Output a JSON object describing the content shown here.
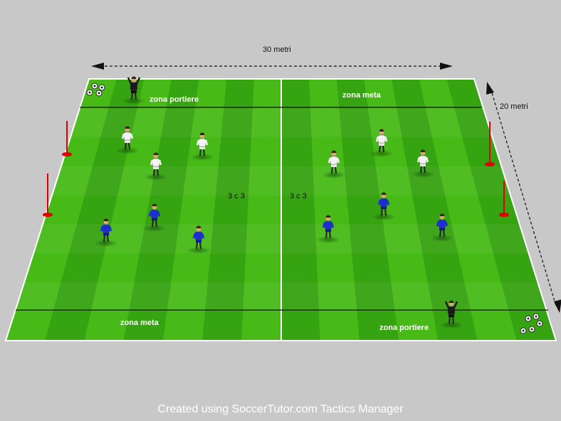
{
  "diagram": {
    "length_label": "30 metri",
    "width_label": "20 metri",
    "zones": {
      "top_left": "zona portiere",
      "top_right": "zona meta",
      "bottom_left": "zona meta",
      "bottom_right": "zona portiere"
    },
    "matchups": {
      "left": "3 c 3",
      "right": "3 c 3"
    },
    "colors": {
      "pitch_light": "#4fc41c",
      "pitch_dark": "#2f9a0e",
      "team_white": "#f4f4f4",
      "team_blue": "#1a2fd0",
      "goalkeeper": "#1a1a1a",
      "pole": "#e00000",
      "background": "#c8c8c8"
    },
    "players": {
      "white": 6,
      "blue": 6,
      "goalkeepers": 2
    }
  },
  "footer": "Created using SoccerTutor.com Tactics Manager"
}
